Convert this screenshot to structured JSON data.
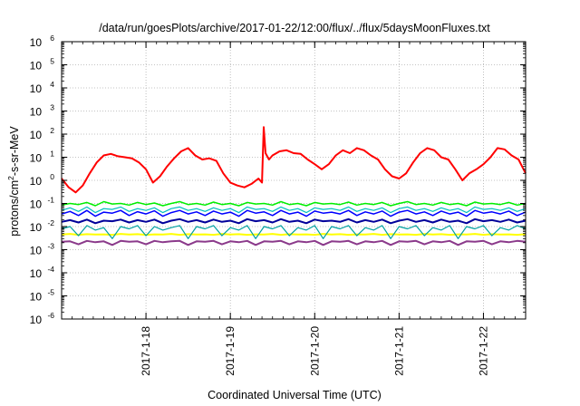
{
  "chart_data": {
    "type": "line",
    "title": "/data/run/goesPlots/archive/2017-01-22/12:00/flux/../flux/5daysMoonFluxes.txt",
    "xlabel": "Coordinated Universal Time (UTC)",
    "ylabel_parts": [
      "protons/cm",
      "2",
      "-s-sr-MeV"
    ],
    "y_scale": "log",
    "ylim": [
      1e-06,
      1000000.0
    ],
    "y_tick_labels": [
      {
        "base": "10",
        "exp": "-6"
      },
      {
        "base": "10",
        "exp": "-5"
      },
      {
        "base": "10",
        "exp": "-4"
      },
      {
        "base": "10",
        "exp": "-3"
      },
      {
        "base": "10",
        "exp": "-2"
      },
      {
        "base": "10",
        "exp": "-1"
      },
      {
        "base": "10",
        "exp": "0"
      },
      {
        "base": "10",
        "exp": "1"
      },
      {
        "base": "10",
        "exp": "2"
      },
      {
        "base": "10",
        "exp": "3"
      },
      {
        "base": "10",
        "exp": "4"
      },
      {
        "base": "10",
        "exp": "5"
      },
      {
        "base": "10",
        "exp": "6"
      }
    ],
    "xlim": [
      "2017-01-17T00:00",
      "2017-01-22T12:00"
    ],
    "x_tick_labels": [
      "2017-1-18",
      "2017-1-19",
      "2017-1-20",
      "2017-1-21",
      "2017-1-22"
    ],
    "x_tick_dates": [
      "2017-01-18",
      "2017-01-19",
      "2017-01-20",
      "2017-01-21",
      "2017-01-22"
    ],
    "grid": true,
    "legend": "none",
    "series": [
      {
        "color": "#ff0000",
        "width": 2,
        "x": [
          "2017-01-17T00:00",
          "2017-01-17T02:00",
          "2017-01-17T04:00",
          "2017-01-17T06:00",
          "2017-01-17T08:00",
          "2017-01-17T10:00",
          "2017-01-17T12:00",
          "2017-01-17T14:00",
          "2017-01-17T16:00",
          "2017-01-17T18:00",
          "2017-01-17T20:00",
          "2017-01-17T22:00",
          "2017-01-18T00:00",
          "2017-01-18T02:00",
          "2017-01-18T04:00",
          "2017-01-18T06:00",
          "2017-01-18T08:00",
          "2017-01-18T10:00",
          "2017-01-18T12:00",
          "2017-01-18T14:00",
          "2017-01-18T16:00",
          "2017-01-18T18:00",
          "2017-01-18T20:00",
          "2017-01-18T22:00",
          "2017-01-19T00:00",
          "2017-01-19T02:00",
          "2017-01-19T04:00",
          "2017-01-19T06:00",
          "2017-01-19T08:00",
          "2017-01-19T09:00",
          "2017-01-19T09:30",
          "2017-01-19T10:00",
          "2017-01-19T11:00",
          "2017-01-19T12:00",
          "2017-01-19T14:00",
          "2017-01-19T16:00",
          "2017-01-19T18:00",
          "2017-01-19T20:00",
          "2017-01-19T22:00",
          "2017-01-20T00:00",
          "2017-01-20T02:00",
          "2017-01-20T04:00",
          "2017-01-20T06:00",
          "2017-01-20T08:00",
          "2017-01-20T10:00",
          "2017-01-20T12:00",
          "2017-01-20T14:00",
          "2017-01-20T16:00",
          "2017-01-20T18:00",
          "2017-01-20T20:00",
          "2017-01-20T22:00",
          "2017-01-21T00:00",
          "2017-01-21T02:00",
          "2017-01-21T04:00",
          "2017-01-21T06:00",
          "2017-01-21T08:00",
          "2017-01-21T10:00",
          "2017-01-21T12:00",
          "2017-01-21T14:00",
          "2017-01-21T16:00",
          "2017-01-21T18:00",
          "2017-01-21T20:00",
          "2017-01-21T22:00",
          "2017-01-22T00:00",
          "2017-01-22T02:00",
          "2017-01-22T04:00",
          "2017-01-22T06:00",
          "2017-01-22T08:00",
          "2017-01-22T10:00",
          "2017-01-22T12:00"
        ],
        "values": [
          1.2,
          0.5,
          0.3,
          0.6,
          2,
          6,
          12,
          14,
          11,
          10,
          9,
          6,
          3,
          0.8,
          1.5,
          4,
          9,
          18,
          25,
          12,
          8,
          9,
          7,
          2,
          0.8,
          0.6,
          0.5,
          0.7,
          1.2,
          0.8,
          200,
          15,
          8,
          12,
          18,
          20,
          15,
          14,
          8,
          5,
          3,
          5,
          12,
          20,
          15,
          25,
          20,
          12,
          8,
          3,
          1.5,
          1.2,
          2,
          6,
          15,
          25,
          20,
          10,
          8,
          3,
          1,
          2,
          3,
          5,
          10,
          25,
          22,
          12,
          8,
          2
        ]
      },
      {
        "color": "#00ee00",
        "width": 1.5,
        "x_daily_fraction": true,
        "values": [
          0.085,
          0.1,
          0.09,
          0.11,
          0.08,
          0.12,
          0.095,
          0.1,
          0.085,
          0.11,
          0.09,
          0.105,
          0.08,
          0.1,
          0.12,
          0.09,
          0.1,
          0.085,
          0.115,
          0.09,
          0.1,
          0.08,
          0.11,
          0.095,
          0.1,
          0.085,
          0.12,
          0.09,
          0.1,
          0.08,
          0.11,
          0.095,
          0.1,
          0.09,
          0.115,
          0.085,
          0.1,
          0.09,
          0.11,
          0.08,
          0.1,
          0.12,
          0.09,
          0.1,
          0.085,
          0.11,
          0.09,
          0.1,
          0.08,
          0.115,
          0.095,
          0.1,
          0.09,
          0.11,
          0.085,
          0.1
        ]
      },
      {
        "color": "#00bfbf",
        "width": 1.2,
        "x_daily_fraction": true,
        "values": [
          0.05,
          0.065,
          0.045,
          0.07,
          0.04,
          0.06,
          0.055,
          0.07,
          0.045,
          0.06,
          0.05,
          0.065,
          0.04,
          0.06,
          0.07,
          0.05,
          0.06,
          0.045,
          0.065,
          0.05,
          0.06,
          0.04,
          0.07,
          0.055,
          0.06,
          0.045,
          0.07,
          0.05,
          0.06,
          0.04,
          0.065,
          0.055,
          0.06,
          0.05,
          0.07,
          0.045,
          0.06,
          0.05,
          0.065,
          0.04,
          0.06,
          0.07,
          0.05,
          0.06,
          0.045,
          0.065,
          0.05,
          0.06,
          0.04,
          0.07,
          0.055,
          0.06,
          0.05,
          0.065,
          0.045,
          0.06
        ]
      },
      {
        "color": "#0000ff",
        "width": 1.5,
        "x_daily_fraction": true,
        "values": [
          0.035,
          0.045,
          0.03,
          0.05,
          0.028,
          0.042,
          0.038,
          0.05,
          0.03,
          0.044,
          0.035,
          0.048,
          0.028,
          0.04,
          0.05,
          0.035,
          0.043,
          0.03,
          0.047,
          0.035,
          0.042,
          0.028,
          0.05,
          0.038,
          0.043,
          0.03,
          0.05,
          0.035,
          0.042,
          0.028,
          0.047,
          0.038,
          0.042,
          0.035,
          0.05,
          0.03,
          0.043,
          0.035,
          0.047,
          0.028,
          0.042,
          0.05,
          0.035,
          0.043,
          0.03,
          0.047,
          0.035,
          0.042,
          0.028,
          0.05,
          0.038,
          0.043,
          0.035,
          0.047,
          0.03,
          0.042
        ]
      },
      {
        "color": "#00009a",
        "width": 2,
        "x_daily_fraction": true,
        "values": [
          0.016,
          0.019,
          0.015,
          0.02,
          0.014,
          0.018,
          0.017,
          0.02,
          0.015,
          0.019,
          0.016,
          0.02,
          0.014,
          0.018,
          0.021,
          0.016,
          0.019,
          0.015,
          0.02,
          0.016,
          0.018,
          0.014,
          0.021,
          0.017,
          0.019,
          0.015,
          0.021,
          0.016,
          0.018,
          0.014,
          0.02,
          0.017,
          0.018,
          0.016,
          0.021,
          0.015,
          0.019,
          0.016,
          0.02,
          0.014,
          0.018,
          0.021,
          0.016,
          0.019,
          0.015,
          0.02,
          0.016,
          0.018,
          0.014,
          0.021,
          0.017,
          0.019,
          0.016,
          0.02,
          0.015,
          0.018
        ]
      },
      {
        "color": "#00a0a0",
        "width": 1.2,
        "x_daily_fraction": true,
        "values": [
          0.008,
          0.01,
          0.004,
          0.011,
          0.007,
          0.009,
          0.003,
          0.01,
          0.008,
          0.011,
          0.004,
          0.01,
          0.007,
          0.009,
          0.011,
          0.003,
          0.01,
          0.008,
          0.011,
          0.004,
          0.009,
          0.007,
          0.011,
          0.003,
          0.01,
          0.008,
          0.011,
          0.004,
          0.009,
          0.007,
          0.011,
          0.003,
          0.01,
          0.008,
          0.011,
          0.004,
          0.009,
          0.007,
          0.011,
          0.003,
          0.01,
          0.008,
          0.011,
          0.004,
          0.009,
          0.007,
          0.011,
          0.003,
          0.01,
          0.008,
          0.011,
          0.004,
          0.009,
          0.007,
          0.011,
          0.008
        ]
      },
      {
        "color": "#ffff00",
        "width": 2,
        "x_daily_fraction": true,
        "values": [
          0.0045,
          0.0048,
          0.0044,
          0.0047,
          0.0045,
          0.0046,
          0.0044,
          0.0048,
          0.0045,
          0.0047,
          0.0044,
          0.0046,
          0.0045,
          0.0048,
          0.0044,
          0.0047,
          0.0045,
          0.0046,
          0.0044,
          0.0048,
          0.0045,
          0.0047,
          0.0044,
          0.0046,
          0.0045,
          0.0048,
          0.0044,
          0.0047,
          0.0045,
          0.0046,
          0.0044,
          0.0048,
          0.0045,
          0.0047,
          0.0044,
          0.0046,
          0.0045,
          0.0048,
          0.0044,
          0.0047,
          0.0045,
          0.0046,
          0.0044,
          0.0048,
          0.0045,
          0.0047,
          0.0044,
          0.0046,
          0.0045,
          0.0048,
          0.0044,
          0.0047,
          0.0045,
          0.0046,
          0.0044,
          0.0047
        ]
      },
      {
        "color": "#8b3a8b",
        "width": 2,
        "x_daily_fraction": true,
        "values": [
          0.0022,
          0.0023,
          0.0017,
          0.0024,
          0.0021,
          0.0023,
          0.0016,
          0.0024,
          0.0022,
          0.0023,
          0.0017,
          0.0024,
          0.0021,
          0.0023,
          0.0024,
          0.0016,
          0.0023,
          0.0022,
          0.0024,
          0.0017,
          0.0023,
          0.0021,
          0.0024,
          0.0016,
          0.0023,
          0.0022,
          0.0024,
          0.0017,
          0.0023,
          0.0021,
          0.0024,
          0.0016,
          0.0023,
          0.0022,
          0.0024,
          0.0017,
          0.0023,
          0.0021,
          0.0024,
          0.0016,
          0.0023,
          0.0022,
          0.0024,
          0.0017,
          0.0023,
          0.0021,
          0.0024,
          0.0016,
          0.0023,
          0.0022,
          0.0024,
          0.0017,
          0.0023,
          0.0021,
          0.0024,
          0.0022
        ]
      }
    ]
  }
}
